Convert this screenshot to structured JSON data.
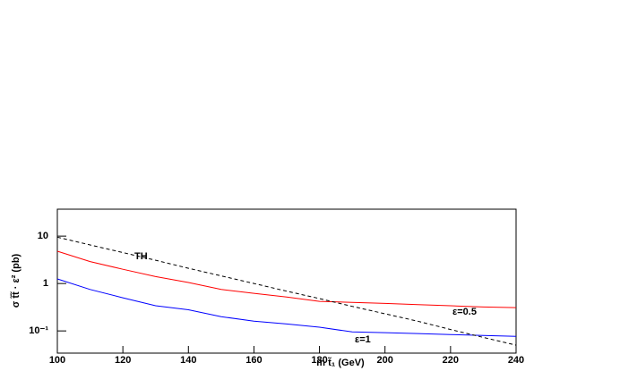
{
  "chart_data": {
    "type": "line",
    "x_label": "m t̃₁ (GeV)",
    "y_label": "σ t̃t̃ · ε² (pb)",
    "xlim": [
      100,
      240
    ],
    "xticks": [
      100,
      120,
      140,
      160,
      180,
      200,
      220,
      240
    ],
    "ylim": [
      0.034,
      37
    ],
    "log_y": true,
    "yticks": [
      {
        "value": 0.1,
        "label": "10⁻¹"
      },
      1,
      10
    ],
    "x": [
      100,
      110,
      120,
      130,
      140,
      150,
      160,
      170,
      180,
      190,
      200,
      210,
      220,
      230,
      240
    ],
    "series": [
      {
        "name": "ε=0.5",
        "color": "#ff0000",
        "dash": false,
        "values": [
          4.8,
          2.9,
          2.0,
          1.4,
          1.05,
          0.75,
          0.62,
          0.52,
          0.42,
          0.4,
          0.38,
          0.36,
          0.34,
          0.32,
          0.31
        ]
      },
      {
        "name": "ε=1",
        "color": "#0000ff",
        "dash": false,
        "values": [
          1.25,
          0.75,
          0.5,
          0.34,
          0.28,
          0.2,
          0.16,
          0.14,
          0.12,
          0.095,
          0.092,
          0.088,
          0.084,
          0.08,
          0.077
        ]
      },
      {
        "name": "TH",
        "color": "#000000",
        "dash": true,
        "values": [
          9.5,
          6.5,
          4.5,
          3.1,
          2.1,
          1.45,
          1.0,
          0.69,
          0.48,
          0.33,
          0.23,
          0.16,
          0.107,
          0.073,
          0.05
        ]
      }
    ]
  }
}
